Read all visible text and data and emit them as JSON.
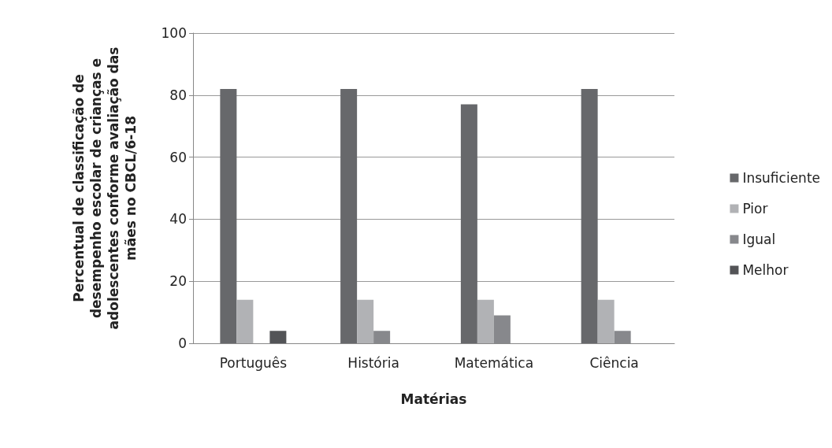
{
  "chart_data": {
    "type": "bar",
    "xlabel": "Matérias",
    "ylabel": "Percentual de classificação de\ndesempenho escolar de crianças e\nadolescentes conforme avaliação das\nmães no CBCL/6-18",
    "categories": [
      "Português",
      "História",
      "Matemática",
      "Ciência"
    ],
    "series": [
      {
        "name": "Insuficiente",
        "color": "#67686b",
        "values": [
          82,
          82,
          77,
          82
        ]
      },
      {
        "name": "Pior",
        "color": "#b1b2b5",
        "values": [
          14,
          14,
          14,
          14
        ]
      },
      {
        "name": "Igual",
        "color": "#87888c",
        "values": [
          0,
          4,
          9,
          4
        ]
      },
      {
        "name": "Melhor",
        "color": "#535457",
        "values": [
          4,
          0,
          0,
          0
        ]
      }
    ],
    "ylim": [
      0,
      100
    ],
    "yticks": [
      0,
      20,
      40,
      60,
      80,
      100
    ],
    "grid": "y",
    "legend": "right"
  }
}
